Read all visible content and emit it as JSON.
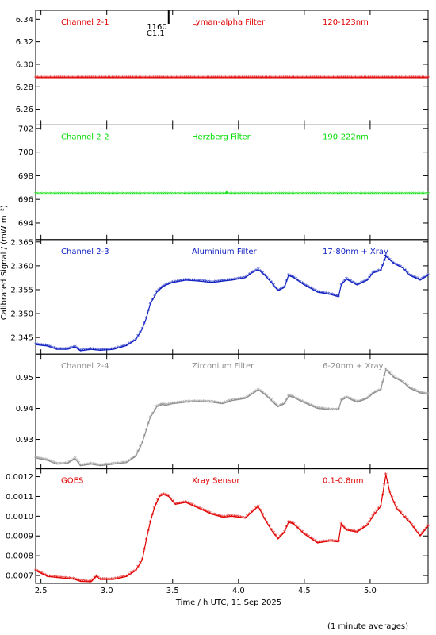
{
  "chart_data": {
    "type": "scatter",
    "xlabel": "Time / h UTC, 11 Sep 2025",
    "ylabel": "Calibrated Signal / (mW m⁻²)",
    "footnote": "(1 minute averages)",
    "xlim": [
      2.46,
      5.44
    ],
    "xticks": [
      2.5,
      3.0,
      3.5,
      4.0,
      4.5,
      5.0
    ],
    "xtick_labels": [
      "2.5",
      "3.0",
      "3.5",
      "4.0",
      "4.5",
      "5.0"
    ],
    "marker_annotation": {
      "x": 3.47,
      "label_top": "1160",
      "label_bottom": "C1.1"
    },
    "panels": [
      {
        "channel": "Channel 2-1",
        "filter": "Lyman-alpha Filter",
        "band": "120-123nm",
        "color": "#e00000",
        "ylim": [
          6.246,
          6.348
        ],
        "yticks": [
          6.26,
          6.28,
          6.3,
          6.32,
          6.34
        ],
        "ytick_labels": [
          "6.26",
          "6.28",
          "6.30",
          "6.32",
          "6.34"
        ],
        "series": [
          {
            "x": [
              2.46,
              5.44
            ],
            "y": [
              6.288,
              6.288
            ]
          }
        ]
      },
      {
        "channel": "Channel 2-2",
        "filter": "Herzberg Filter",
        "band": "190-222nm",
        "color": "#00dd00",
        "ylim": [
          692.6,
          702.3
        ],
        "yticks": [
          694,
          696,
          698,
          700,
          702
        ],
        "ytick_labels": [
          "694",
          "696",
          "698",
          "700",
          "702"
        ],
        "series": [
          {
            "x": [
              2.46,
              3.9,
              3.91,
              3.92,
              5.44
            ],
            "y": [
              696.45,
              696.45,
              696.6,
              696.45,
              696.45
            ]
          }
        ]
      },
      {
        "channel": "Channel 2-3",
        "filter": "Aluminium Filter",
        "band": "17-80nm + Xray",
        "color": "#1020c0",
        "ylim": [
          2.3415,
          2.3655
        ],
        "yticks": [
          2.345,
          2.35,
          2.355,
          2.36,
          2.365
        ],
        "ytick_labels": [
          "2.345",
          "2.350",
          "2.355",
          "2.360",
          "2.365"
        ],
        "series": [
          {
            "x": [
              2.46,
              2.55,
              2.62,
              2.7,
              2.76,
              2.8,
              2.88,
              2.95,
              3.05,
              3.15,
              3.22,
              3.27,
              3.3,
              3.33,
              3.38,
              3.42,
              3.45,
              3.5,
              3.6,
              3.7,
              3.8,
              3.88,
              3.95,
              4.05,
              4.1,
              4.15,
              4.2,
              4.25,
              4.3,
              4.35,
              4.38,
              4.42,
              4.5,
              4.6,
              4.7,
              4.76,
              4.78,
              4.82,
              4.9,
              4.98,
              5.02,
              5.08,
              5.12,
              5.18,
              5.25,
              5.3,
              5.38,
              5.44
            ],
            "y": [
              2.3435,
              2.3432,
              2.3425,
              2.3425,
              2.343,
              2.3422,
              2.3425,
              2.3423,
              2.3425,
              2.3433,
              2.3445,
              2.3468,
              2.349,
              2.352,
              2.3545,
              2.3555,
              2.356,
              2.3565,
              2.357,
              2.3568,
              2.3565,
              2.3568,
              2.357,
              2.3575,
              2.3585,
              2.3592,
              2.358,
              2.3565,
              2.3548,
              2.3555,
              2.358,
              2.3575,
              2.356,
              2.3545,
              2.354,
              2.3535,
              2.356,
              2.3572,
              2.356,
              2.357,
              2.3585,
              2.359,
              2.362,
              2.3605,
              2.3595,
              2.358,
              2.357,
              2.358
            ]
          }
        ]
      },
      {
        "channel": "Channel 2-4",
        "filter": "Zirconium Filter",
        "band": "6-20nm + Xray",
        "color": "#909090",
        "ylim": [
          0.9205,
          0.9575
        ],
        "yticks": [
          0.93,
          0.94,
          0.95
        ],
        "ytick_labels": [
          "0.93",
          "0.94",
          "0.95"
        ],
        "series": [
          {
            "x": [
              2.46,
              2.55,
              2.62,
              2.7,
              2.76,
              2.8,
              2.88,
              2.95,
              3.05,
              3.15,
              3.22,
              3.27,
              3.3,
              3.33,
              3.38,
              3.42,
              3.45,
              3.5,
              3.6,
              3.7,
              3.8,
              3.88,
              3.95,
              4.05,
              4.1,
              4.15,
              4.2,
              4.25,
              4.3,
              4.35,
              4.38,
              4.42,
              4.5,
              4.6,
              4.7,
              4.76,
              4.78,
              4.82,
              4.9,
              4.98,
              5.02,
              5.08,
              5.12,
              5.18,
              5.25,
              5.3,
              5.38,
              5.44
            ],
            "y": [
              0.924,
              0.9232,
              0.922,
              0.9222,
              0.9238,
              0.9215,
              0.922,
              0.9215,
              0.922,
              0.9225,
              0.9245,
              0.929,
              0.933,
              0.937,
              0.9405,
              0.9412,
              0.941,
              0.9415,
              0.942,
              0.9422,
              0.942,
              0.9415,
              0.9425,
              0.9432,
              0.9445,
              0.946,
              0.9445,
              0.9425,
              0.9405,
              0.9415,
              0.944,
              0.9435,
              0.9418,
              0.94,
              0.9395,
              0.9395,
              0.9425,
              0.9435,
              0.942,
              0.9432,
              0.9448,
              0.946,
              0.9525,
              0.95,
              0.9485,
              0.9465,
              0.945,
              0.9445
            ]
          }
        ]
      },
      {
        "channel": "GOES",
        "filter": "Xray Sensor",
        "band": "0.1-0.8nm",
        "color": "#e00000",
        "ylim": [
          0.00066,
          0.00124
        ],
        "yticks": [
          0.0007,
          0.0008,
          0.0009,
          0.001,
          0.0011,
          0.0012
        ],
        "ytick_labels": [
          "0.0007",
          "0.0008",
          "0.0009",
          "0.0010",
          "0.0011",
          "0.0012"
        ],
        "series": [
          {
            "x": [
              2.46,
              2.55,
              2.62,
              2.7,
              2.76,
              2.8,
              2.88,
              2.92,
              2.95,
              3.05,
              3.15,
              3.22,
              3.27,
              3.3,
              3.33,
              3.36,
              3.4,
              3.43,
              3.47,
              3.52,
              3.6,
              3.7,
              3.8,
              3.88,
              3.95,
              4.05,
              4.1,
              4.15,
              4.2,
              4.25,
              4.3,
              4.35,
              4.38,
              4.42,
              4.5,
              4.6,
              4.7,
              4.76,
              4.78,
              4.82,
              4.9,
              4.98,
              5.02,
              5.08,
              5.12,
              5.15,
              5.2,
              5.3,
              5.38,
              5.44
            ],
            "y": [
              0.000725,
              0.000695,
              0.00069,
              0.000685,
              0.00068,
              0.00067,
              0.000668,
              0.000695,
              0.00068,
              0.00068,
              0.000695,
              0.000725,
              0.00078,
              0.00088,
              0.00097,
              0.00104,
              0.0011,
              0.00111,
              0.0011,
              0.00106,
              0.00107,
              0.00104,
              0.00101,
              0.000995,
              0.001,
              0.00099,
              0.00102,
              0.00105,
              0.000985,
              0.00093,
              0.000885,
              0.00092,
              0.00097,
              0.00096,
              0.00091,
              0.000865,
              0.000875,
              0.00087,
              0.00096,
              0.00093,
              0.00092,
              0.000955,
              0.001,
              0.00105,
              0.00121,
              0.00112,
              0.00104,
              0.00097,
              0.0009,
              0.00095
            ]
          }
        ]
      }
    ]
  }
}
